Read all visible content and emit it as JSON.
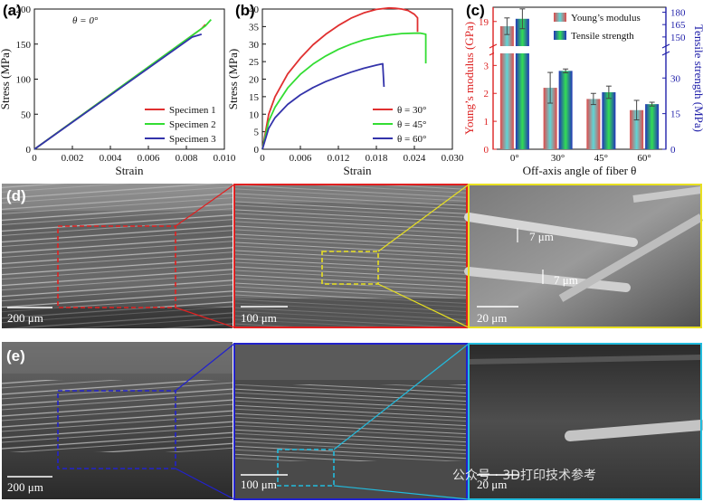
{
  "panels": {
    "a": "(a)",
    "b": "(b)",
    "c": "(c)",
    "d": "(d)",
    "e": "(e)"
  },
  "chart_data": [
    {
      "id": "a",
      "type": "line",
      "annotation": "θ = 0°",
      "xlabel": "Strain",
      "ylabel": "Stress (MPa)",
      "xlim": [
        0,
        0.01
      ],
      "ylim": [
        0,
        200
      ],
      "xticks": [
        "0",
        "0.002",
        "0.004",
        "0.006",
        "0.008",
        "0.010"
      ],
      "xtick_values": [
        0,
        0.002,
        0.004,
        0.006,
        0.008,
        0.01
      ],
      "yticks": [
        "0",
        "50",
        "100",
        "150",
        "200"
      ],
      "ytick_values": [
        0,
        50,
        100,
        150,
        200
      ],
      "legend_position": "bottom-right",
      "series": [
        {
          "name": "Specimen 1",
          "color": "#e03030",
          "x": [
            0,
            0.0088,
            0.009
          ],
          "y": [
            0,
            172,
            178
          ]
        },
        {
          "name": "Specimen 2",
          "color": "#33dd33",
          "x": [
            0,
            0.009,
            0.0093
          ],
          "y": [
            0,
            176,
            185
          ]
        },
        {
          "name": "Specimen 3",
          "color": "#3333aa",
          "x": [
            0,
            0.0083,
            0.0088
          ],
          "y": [
            0,
            160,
            164
          ]
        }
      ]
    },
    {
      "id": "b",
      "type": "line",
      "xlabel": "Strain",
      "ylabel": "Stress (MPa)",
      "xlim": [
        0,
        0.03
      ],
      "ylim": [
        0,
        40
      ],
      "xticks": [
        "0",
        "0.006",
        "0.012",
        "0.018",
        "0.024",
        "0.030"
      ],
      "xtick_values": [
        0,
        0.006,
        0.012,
        0.018,
        0.024,
        0.03
      ],
      "yticks": [
        "0",
        "5",
        "10",
        "15",
        "20",
        "25",
        "30",
        "35",
        "40"
      ],
      "ytick_values": [
        0,
        5,
        10,
        15,
        20,
        25,
        30,
        35,
        40
      ],
      "legend_position": "bottom-right",
      "series": [
        {
          "name": "θ = 30°",
          "color": "#e03030",
          "x": [
            0,
            0.001,
            0.002,
            0.004,
            0.006,
            0.008,
            0.01,
            0.012,
            0.014,
            0.016,
            0.018,
            0.02,
            0.021,
            0.022,
            0.023,
            0.024,
            0.0245,
            0.0245
          ],
          "y": [
            0,
            10,
            15,
            21.5,
            26,
            29.8,
            32.8,
            35.3,
            37.4,
            38.9,
            39.9,
            40.3,
            40.2,
            40.0,
            39.6,
            38.5,
            37.5,
            33.5
          ]
        },
        {
          "name": "θ = 45°",
          "color": "#33dd33",
          "x": [
            0,
            0.001,
            0.002,
            0.004,
            0.006,
            0.008,
            0.01,
            0.012,
            0.014,
            0.016,
            0.018,
            0.02,
            0.022,
            0.024,
            0.025,
            0.0258,
            0.0258
          ],
          "y": [
            0,
            8,
            12,
            17.5,
            21.4,
            24.3,
            26.6,
            28.5,
            30.0,
            31.2,
            32.0,
            32.6,
            33.0,
            33.1,
            33.1,
            32.8,
            24.5
          ]
        },
        {
          "name": "θ = 60°",
          "color": "#3333aa",
          "x": [
            0,
            0.001,
            0.002,
            0.004,
            0.006,
            0.008,
            0.01,
            0.012,
            0.014,
            0.016,
            0.018,
            0.019,
            0.0192
          ],
          "y": [
            0,
            6,
            9,
            12.8,
            15.5,
            17.6,
            19.3,
            20.7,
            22.0,
            23.1,
            24.0,
            24.4,
            17.8
          ]
        }
      ]
    },
    {
      "id": "c",
      "type": "bar",
      "xlabel": "Off-axis angle of fiber θ",
      "ylabel_left": "Young’s modulus (GPa)",
      "ylabel_right": "Tensile strength (MPa)",
      "categories": [
        "0°",
        "30°",
        "45°",
        "60°"
      ],
      "left_axis_ticks": [
        {
          "label": "19",
          "y_value": 19
        },
        {
          "label": "3",
          "y_value": 3
        },
        {
          "label": "2",
          "y_value": 2
        },
        {
          "label": "1",
          "y_value": 1
        },
        {
          "label": "0",
          "y_value": 0
        }
      ],
      "right_axis_ticks": [
        {
          "label": "180",
          "y_value": 180
        },
        {
          "label": "165",
          "y_value": 165
        },
        {
          "label": "150",
          "y_value": 150
        },
        {
          "label": "30",
          "y_value": 30
        },
        {
          "label": "15",
          "y_value": 15
        },
        {
          "label": "0",
          "y_value": 0
        }
      ],
      "axis_break": true,
      "legend_position": "top-right",
      "colors": {
        "left_axis": "#dd2222",
        "right_axis": "#2222aa"
      },
      "series": [
        {
          "name": "Young’s modulus",
          "axis": "left",
          "values": [
            18.8,
            2.2,
            1.8,
            1.4
          ],
          "errors": [
            0.35,
            0.55,
            0.2,
            0.35
          ]
        },
        {
          "name": "Tensile strength",
          "axis": "right",
          "values": [
            172,
            33,
            24,
            19
          ],
          "errors": [
            12,
            0.8,
            2.6,
            0.8
          ]
        }
      ]
    }
  ],
  "sem": {
    "d_scale_1": "200 μm",
    "d_scale_2": "100 μm",
    "d_scale_3": "20 μm",
    "d_dim_1": "7 μm",
    "d_dim_2": "7 μm",
    "e_scale_1": "200 μm",
    "e_scale_2": "100 μm",
    "e_scale_3": "20 μm"
  },
  "watermark": "公众号 · 3D打印技术参考"
}
